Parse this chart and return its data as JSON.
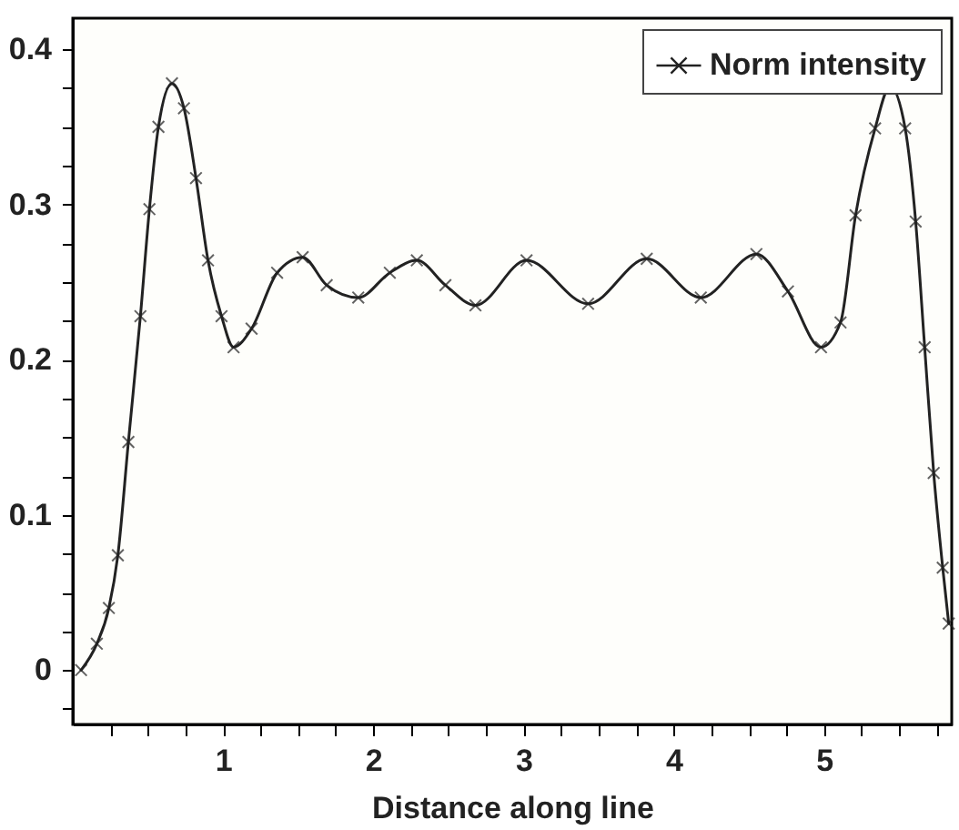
{
  "chart_data": {
    "type": "line",
    "xlabel": "Distance along line",
    "x": [
      0.055,
      0.16,
      0.24,
      0.3,
      0.37,
      0.45,
      0.51,
      0.57,
      0.66,
      0.74,
      0.82,
      0.9,
      0.99,
      1.07,
      1.19,
      1.36,
      1.53,
      1.69,
      1.9,
      2.11,
      2.29,
      2.48,
      2.68,
      3.02,
      3.43,
      3.82,
      4.18,
      4.55,
      4.76,
      4.98,
      5.11,
      5.21,
      5.34,
      5.44,
      5.54,
      5.61,
      5.67,
      5.73,
      5.79,
      5.83
    ],
    "series": [
      {
        "name": "Norm intensity",
        "color": "#222222",
        "values": [
          0,
          0.017,
          0.04,
          0.074,
          0.147,
          0.228,
          0.297,
          0.35,
          0.378,
          0.362,
          0.317,
          0.264,
          0.228,
          0.208,
          0.22,
          0.256,
          0.266,
          0.248,
          0.24,
          0.256,
          0.264,
          0.248,
          0.235,
          0.264,
          0.236,
          0.265,
          0.24,
          0.268,
          0.244,
          0.208,
          0.224,
          0.293,
          0.349,
          0.376,
          0.349,
          0.289,
          0.208,
          0.127,
          0.066,
          0.03
        ]
      }
    ],
    "xlim": [
      0,
      5.85
    ],
    "ylim": [
      -0.035,
      0.42
    ],
    "xticks": [
      {
        "value": 0.25,
        "label": null
      },
      {
        "value": 0.5,
        "label": null
      },
      {
        "value": 0.75,
        "label": null
      },
      1,
      {
        "value": 1.25,
        "label": null
      },
      {
        "value": 1.5,
        "label": null
      },
      {
        "value": 1.75,
        "label": null
      },
      2,
      {
        "value": 2.25,
        "label": null
      },
      {
        "value": 2.5,
        "label": null
      },
      {
        "value": 2.75,
        "label": null
      },
      3,
      {
        "value": 3.25,
        "label": null
      },
      {
        "value": 3.5,
        "label": null
      },
      {
        "value": 3.75,
        "label": null
      },
      4,
      {
        "value": 4.25,
        "label": null
      },
      {
        "value": 4.5,
        "label": null
      },
      {
        "value": 4.75,
        "label": null
      },
      5,
      {
        "value": 5.25,
        "label": null
      },
      {
        "value": 5.5,
        "label": null
      },
      {
        "value": 5.75,
        "label": null
      }
    ],
    "yticks": [
      {
        "value": -0.025,
        "label": null
      },
      0,
      {
        "value": 0.025,
        "label": null
      },
      {
        "value": 0.05,
        "label": null
      },
      {
        "value": 0.075,
        "label": null
      },
      0.1,
      {
        "value": 0.125,
        "label": null
      },
      {
        "value": 0.15,
        "label": null
      },
      {
        "value": 0.175,
        "label": null
      },
      0.2,
      {
        "value": 0.225,
        "label": null
      },
      {
        "value": 0.25,
        "label": null
      },
      {
        "value": 0.275,
        "label": null
      },
      0.3,
      {
        "value": 0.325,
        "label": null
      },
      {
        "value": 0.35,
        "label": null
      },
      {
        "value": 0.375,
        "label": null
      },
      0.4
    ],
    "grid": false,
    "legend": "top right",
    "marker": "cross",
    "line_style": "solid"
  }
}
